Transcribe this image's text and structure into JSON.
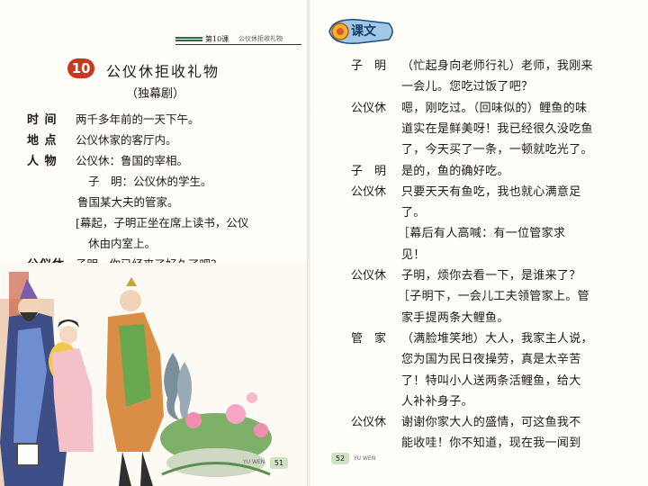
{
  "left_page": {
    "header": {
      "lesson": "第10课",
      "title": "公仪休拒收礼物"
    },
    "lesson_number": "10",
    "title": "公仪休拒收礼物",
    "subtitle": "（独幕剧）",
    "setting": [
      {
        "label": "时  间",
        "text": "两千多年前的一天下午。"
      },
      {
        "label": "地  点",
        "text": "公仪休家的客厅内。"
      },
      {
        "label": "人  物",
        "text": "公仪休：鲁国的宰相。"
      }
    ],
    "characters_more": [
      "子　明：公仪休的学生。",
      "鲁国某大夫的管家。"
    ],
    "stage": [
      "[幕起，子明正坐在席上读书，公仪",
      "休由内室上。"
    ],
    "first_line": {
      "speaker": "公仪休",
      "text": "子明，你已经来了好久了吧？"
    },
    "footer": {
      "label": "YU WEN",
      "page": "51"
    }
  },
  "right_page": {
    "section_title": "课文",
    "lines": [
      {
        "speaker": "子　明",
        "text": "（忙起身向老师行礼）老师，我刚来"
      },
      {
        "speaker": "",
        "text": "一会儿。您吃过饭了吧？"
      },
      {
        "speaker": "公仪休",
        "text": "嗯，刚吃过。（回味似的）鲤鱼的味"
      },
      {
        "speaker": "",
        "text": "道实在是鲜美呀！我已经很久没吃鱼"
      },
      {
        "speaker": "",
        "text": "了，今天买了一条，一顿就吃光了。"
      },
      {
        "speaker": "子　明",
        "text": "是的，鱼的确好吃。"
      },
      {
        "speaker": "公仪休",
        "text": "只要天天有鱼吃，我也就心满意足"
      },
      {
        "speaker": "",
        "text": "了。"
      },
      {
        "speaker": "",
        "text": "［幕后有人高喊：有一位管家求"
      },
      {
        "speaker": "",
        "text": "见！"
      },
      {
        "speaker": "公仪休",
        "text": "子明，烦你去看一下，是谁来了？"
      },
      {
        "speaker": "",
        "text": "［子明下，一会儿工夫领管家上。管"
      },
      {
        "speaker": "",
        "text": "家手提两条大鲤鱼。"
      },
      {
        "speaker": "管　家",
        "text": "（满脸堆笑地）大人，我家主人说，"
      },
      {
        "speaker": "",
        "text": "您为国为民日夜操劳，真是太辛苦"
      },
      {
        "speaker": "",
        "text": "了！特叫小人送两条活鲤鱼，给大"
      },
      {
        "speaker": "",
        "text": "人补补身子。"
      },
      {
        "speaker": "公仪休",
        "text": "谢谢你家大人的盛情，可这鱼我不"
      },
      {
        "speaker": "",
        "text": "能收哇！你不知道，现在我一闻到"
      }
    ],
    "footer": {
      "label": "YU WEN",
      "page": "52"
    }
  },
  "colors": {
    "badge": "#c9371e",
    "header_bar": "#2f6b3f",
    "page_tab": "#cfe3c4",
    "section_title": "#123a66"
  }
}
